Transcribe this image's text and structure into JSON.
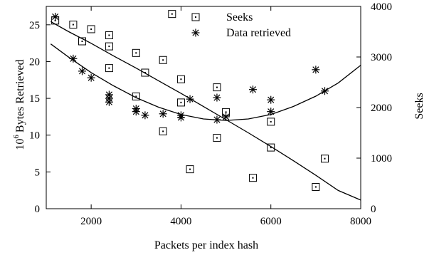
{
  "chart_data": {
    "type": "scatter",
    "xlabel": "Packets per index hash",
    "ylabel_left": "Bytes Retrieved",
    "ylabel_left_base": "10",
    "ylabel_left_exp": "6",
    "ylabel_right": "Seeks",
    "xlim": [
      1000,
      8000
    ],
    "ylim_left": [
      0,
      27.5
    ],
    "ylim_right": [
      0,
      4000
    ],
    "x_ticks": [
      2000,
      4000,
      6000,
      8000
    ],
    "y_left_ticks": [
      0,
      5,
      10,
      15,
      20,
      25
    ],
    "y_right_ticks": [
      0,
      1000,
      2000,
      3000,
      4000
    ],
    "legend_position": "top-right",
    "series": [
      {
        "name": "Seeks",
        "marker": "square",
        "axis": "right",
        "points": [
          {
            "x": 1200,
            "y": 3720
          },
          {
            "x": 1600,
            "y": 3640
          },
          {
            "x": 1800,
            "y": 3310
          },
          {
            "x": 2000,
            "y": 3550
          },
          {
            "x": 2400,
            "y": 3430
          },
          {
            "x": 2400,
            "y": 3210
          },
          {
            "x": 2400,
            "y": 2780
          },
          {
            "x": 3000,
            "y": 3080
          },
          {
            "x": 3000,
            "y": 2220
          },
          {
            "x": 3200,
            "y": 2690
          },
          {
            "x": 3600,
            "y": 2940
          },
          {
            "x": 3600,
            "y": 1530
          },
          {
            "x": 3800,
            "y": 3850
          },
          {
            "x": 4000,
            "y": 2560
          },
          {
            "x": 4000,
            "y": 2100
          },
          {
            "x": 4200,
            "y": 780
          },
          {
            "x": 4800,
            "y": 2400
          },
          {
            "x": 4800,
            "y": 1400
          },
          {
            "x": 5000,
            "y": 1910
          },
          {
            "x": 5600,
            "y": 610
          },
          {
            "x": 6000,
            "y": 1720
          },
          {
            "x": 6000,
            "y": 1210
          },
          {
            "x": 7000,
            "y": 430
          },
          {
            "x": 7200,
            "y": 990
          }
        ]
      },
      {
        "name": "Data retrieved",
        "marker": "asterisk",
        "axis": "left",
        "points": [
          {
            "x": 1200,
            "y": 26.1
          },
          {
            "x": 1600,
            "y": 20.4
          },
          {
            "x": 1800,
            "y": 18.7
          },
          {
            "x": 2000,
            "y": 17.8
          },
          {
            "x": 2400,
            "y": 15.5
          },
          {
            "x": 2400,
            "y": 15.0
          },
          {
            "x": 2400,
            "y": 14.5
          },
          {
            "x": 3000,
            "y": 13.6
          },
          {
            "x": 3000,
            "y": 13.2
          },
          {
            "x": 3200,
            "y": 12.7
          },
          {
            "x": 3600,
            "y": 12.9
          },
          {
            "x": 4000,
            "y": 12.7
          },
          {
            "x": 4000,
            "y": 12.4
          },
          {
            "x": 4200,
            "y": 14.9
          },
          {
            "x": 4800,
            "y": 15.1
          },
          {
            "x": 4800,
            "y": 12.1
          },
          {
            "x": 5000,
            "y": 12.5
          },
          {
            "x": 5600,
            "y": 16.2
          },
          {
            "x": 6000,
            "y": 14.8
          },
          {
            "x": 6000,
            "y": 13.2
          },
          {
            "x": 7000,
            "y": 18.9
          },
          {
            "x": 7200,
            "y": 16.0
          }
        ]
      }
    ],
    "trend_curves": [
      {
        "of_series": "Data retrieved",
        "axis": "left",
        "points": [
          {
            "x": 1100,
            "y": 22.4
          },
          {
            "x": 1500,
            "y": 20.6
          },
          {
            "x": 2000,
            "y": 18.5
          },
          {
            "x": 2500,
            "y": 16.7
          },
          {
            "x": 3000,
            "y": 15.1
          },
          {
            "x": 3500,
            "y": 13.8
          },
          {
            "x": 4000,
            "y": 12.8
          },
          {
            "x": 4500,
            "y": 12.2
          },
          {
            "x": 5000,
            "y": 12.0
          },
          {
            "x": 5500,
            "y": 12.2
          },
          {
            "x": 6000,
            "y": 12.8
          },
          {
            "x": 6500,
            "y": 13.9
          },
          {
            "x": 7000,
            "y": 15.3
          },
          {
            "x": 7500,
            "y": 17.1
          },
          {
            "x": 8000,
            "y": 19.5
          }
        ]
      },
      {
        "of_series": "Seeks",
        "axis": "right",
        "points": [
          {
            "x": 1100,
            "y": 3700
          },
          {
            "x": 1500,
            "y": 3500
          },
          {
            "x": 2000,
            "y": 3270
          },
          {
            "x": 2500,
            "y": 3020
          },
          {
            "x": 3000,
            "y": 2780
          },
          {
            "x": 3500,
            "y": 2530
          },
          {
            "x": 4000,
            "y": 2280
          },
          {
            "x": 4500,
            "y": 2020
          },
          {
            "x": 5000,
            "y": 1760
          },
          {
            "x": 5500,
            "y": 1500
          },
          {
            "x": 6000,
            "y": 1230
          },
          {
            "x": 6500,
            "y": 950
          },
          {
            "x": 7000,
            "y": 660
          },
          {
            "x": 7500,
            "y": 360
          },
          {
            "x": 8000,
            "y": 170
          }
        ]
      }
    ]
  }
}
